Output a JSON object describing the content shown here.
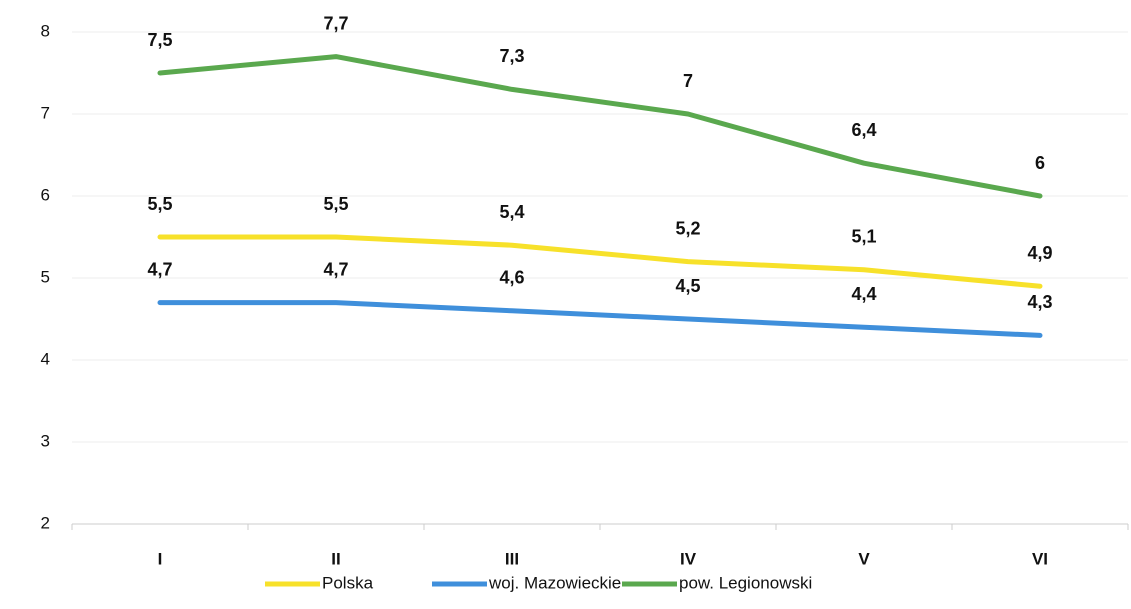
{
  "chart_data": {
    "type": "line",
    "categories": [
      "I",
      "II",
      "III",
      "IV",
      "V",
      "VI"
    ],
    "series": [
      {
        "name": "Polska",
        "color": "#f7e12a",
        "values": [
          5.5,
          5.5,
          5.4,
          5.2,
          5.1,
          4.9
        ],
        "value_labels": [
          "5,5",
          "5,5",
          "5,4",
          "5,2",
          "5,1",
          "4,9"
        ]
      },
      {
        "name": "woj. Mazowieckie",
        "color": "#3f8fdb",
        "values": [
          4.7,
          4.7,
          4.6,
          4.5,
          4.4,
          4.3
        ],
        "value_labels": [
          "4,7",
          "4,7",
          "4,6",
          "4,5",
          "4,4",
          "4,3"
        ]
      },
      {
        "name": "pow. Legionowski",
        "color": "#5aa84e",
        "values": [
          7.5,
          7.7,
          7.3,
          7,
          6.4,
          6
        ],
        "value_labels": [
          "7,5",
          "7,7",
          "7,3",
          "7",
          "6,4",
          "6"
        ]
      }
    ],
    "ylim": [
      2,
      8
    ],
    "yticks": [
      2,
      3,
      4,
      5,
      6,
      7,
      8
    ],
    "grid": true,
    "legend": "bottom"
  }
}
